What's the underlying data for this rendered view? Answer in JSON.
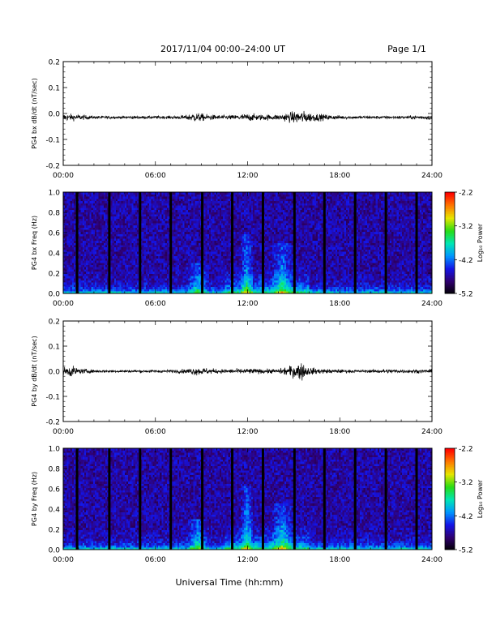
{
  "header": {
    "title": "2017/11/04  00:00–24:00 UT",
    "page": "Page 1/1"
  },
  "footer": {
    "xlabel": "Universal Time (hh:mm)"
  },
  "colorbar": {
    "title": "Log₁₀ Power",
    "ticks": [
      "-2.2",
      "-3.2",
      "-4.2",
      "-5.2"
    ],
    "range": [
      -5.2,
      -2.2
    ]
  },
  "chart_data": [
    {
      "type": "line",
      "ylabel": "PG4 bx dB/dt (nT/sec)",
      "x_ticks": [
        "00:00",
        "06:00",
        "12:00",
        "18:00",
        "24:00"
      ],
      "y_ticks": [
        "0.2",
        "0.1",
        "0.0",
        "-0.1",
        "-0.2"
      ],
      "xlim": [
        0,
        24
      ],
      "ylim": [
        -0.2,
        0.2
      ],
      "series": [
        {
          "x": [
            0,
            1,
            2,
            3,
            4,
            5,
            6,
            7,
            8,
            8.5,
            9,
            9.5,
            10,
            11,
            12,
            13,
            14,
            15,
            15.5,
            16,
            17,
            18,
            19,
            20,
            21,
            22,
            23,
            24
          ],
          "y_envelope": [
            0.02,
            0.015,
            0.008,
            0.008,
            0.007,
            0.008,
            0.008,
            0.008,
            0.012,
            0.025,
            0.02,
            0.015,
            0.012,
            0.012,
            0.02,
            0.015,
            0.015,
            0.03,
            0.035,
            0.025,
            0.015,
            0.01,
            0.008,
            0.008,
            0.008,
            0.008,
            0.01,
            0.012
          ],
          "y_center": -0.015
        }
      ]
    },
    {
      "type": "heatmap",
      "ylabel": "PG4 bx Freq (Hz)",
      "x_ticks": [
        "00:00",
        "06:00",
        "12:00",
        "18:00",
        "24:00"
      ],
      "y_ticks": [
        "1.0",
        "0.8",
        "0.6",
        "0.4",
        "0.2",
        "0.0"
      ],
      "xlim": [
        0,
        24
      ],
      "ylim": [
        0,
        1
      ],
      "data_gaps_hours": [
        0.9,
        3.0,
        5.0,
        7.0,
        9.05,
        11.0,
        13.0,
        15.05,
        17.0,
        19.0,
        21.0,
        23.0
      ],
      "enhanced_features": [
        {
          "t_start": 8.0,
          "t_end": 9.5,
          "f_max": 0.3
        },
        {
          "t_start": 11.5,
          "t_end": 12.4,
          "f_max": 0.58
        },
        {
          "t_start": 13.5,
          "t_end": 15.0,
          "f_max": 0.5
        }
      ]
    },
    {
      "type": "line",
      "ylabel": "PG4 by dB/dt (nT/sec)",
      "x_ticks": [
        "00:00",
        "06:00",
        "12:00",
        "18:00",
        "24:00"
      ],
      "y_ticks": [
        "0.2",
        "0.1",
        "0.0",
        "-0.1",
        "-0.2"
      ],
      "xlim": [
        0,
        24
      ],
      "ylim": [
        -0.2,
        0.2
      ],
      "series": [
        {
          "x": [
            0,
            0.5,
            1,
            2,
            3,
            4,
            5,
            6,
            7,
            8,
            8.5,
            9,
            10,
            11,
            12,
            13,
            14,
            15,
            15.5,
            16,
            17,
            18,
            19,
            20,
            21,
            22,
            23,
            24
          ],
          "y_envelope": [
            0.02,
            0.03,
            0.015,
            0.008,
            0.007,
            0.007,
            0.008,
            0.008,
            0.008,
            0.012,
            0.02,
            0.02,
            0.012,
            0.012,
            0.015,
            0.012,
            0.012,
            0.035,
            0.05,
            0.02,
            0.012,
            0.01,
            0.008,
            0.008,
            0.012,
            0.01,
            0.01,
            0.01
          ],
          "y_center": 0.0
        }
      ]
    },
    {
      "type": "heatmap",
      "ylabel": "PG4 by Freq (Hz)",
      "x_ticks": [
        "00:00",
        "06:00",
        "12:00",
        "18:00",
        "24:00"
      ],
      "y_ticks": [
        "1.0",
        "0.8",
        "0.6",
        "0.4",
        "0.2",
        "0.0"
      ],
      "xlim": [
        0,
        24
      ],
      "ylim": [
        0,
        1
      ],
      "data_gaps_hours": [
        0.9,
        3.0,
        5.0,
        7.0,
        9.05,
        11.0,
        13.0,
        15.05,
        17.0,
        19.0,
        21.0,
        23.0
      ],
      "enhanced_features": [
        {
          "t_start": 8.0,
          "t_end": 9.5,
          "f_max": 0.3
        },
        {
          "t_start": 11.5,
          "t_end": 12.4,
          "f_max": 0.62
        },
        {
          "t_start": 13.5,
          "t_end": 15.0,
          "f_max": 0.45
        }
      ]
    }
  ]
}
